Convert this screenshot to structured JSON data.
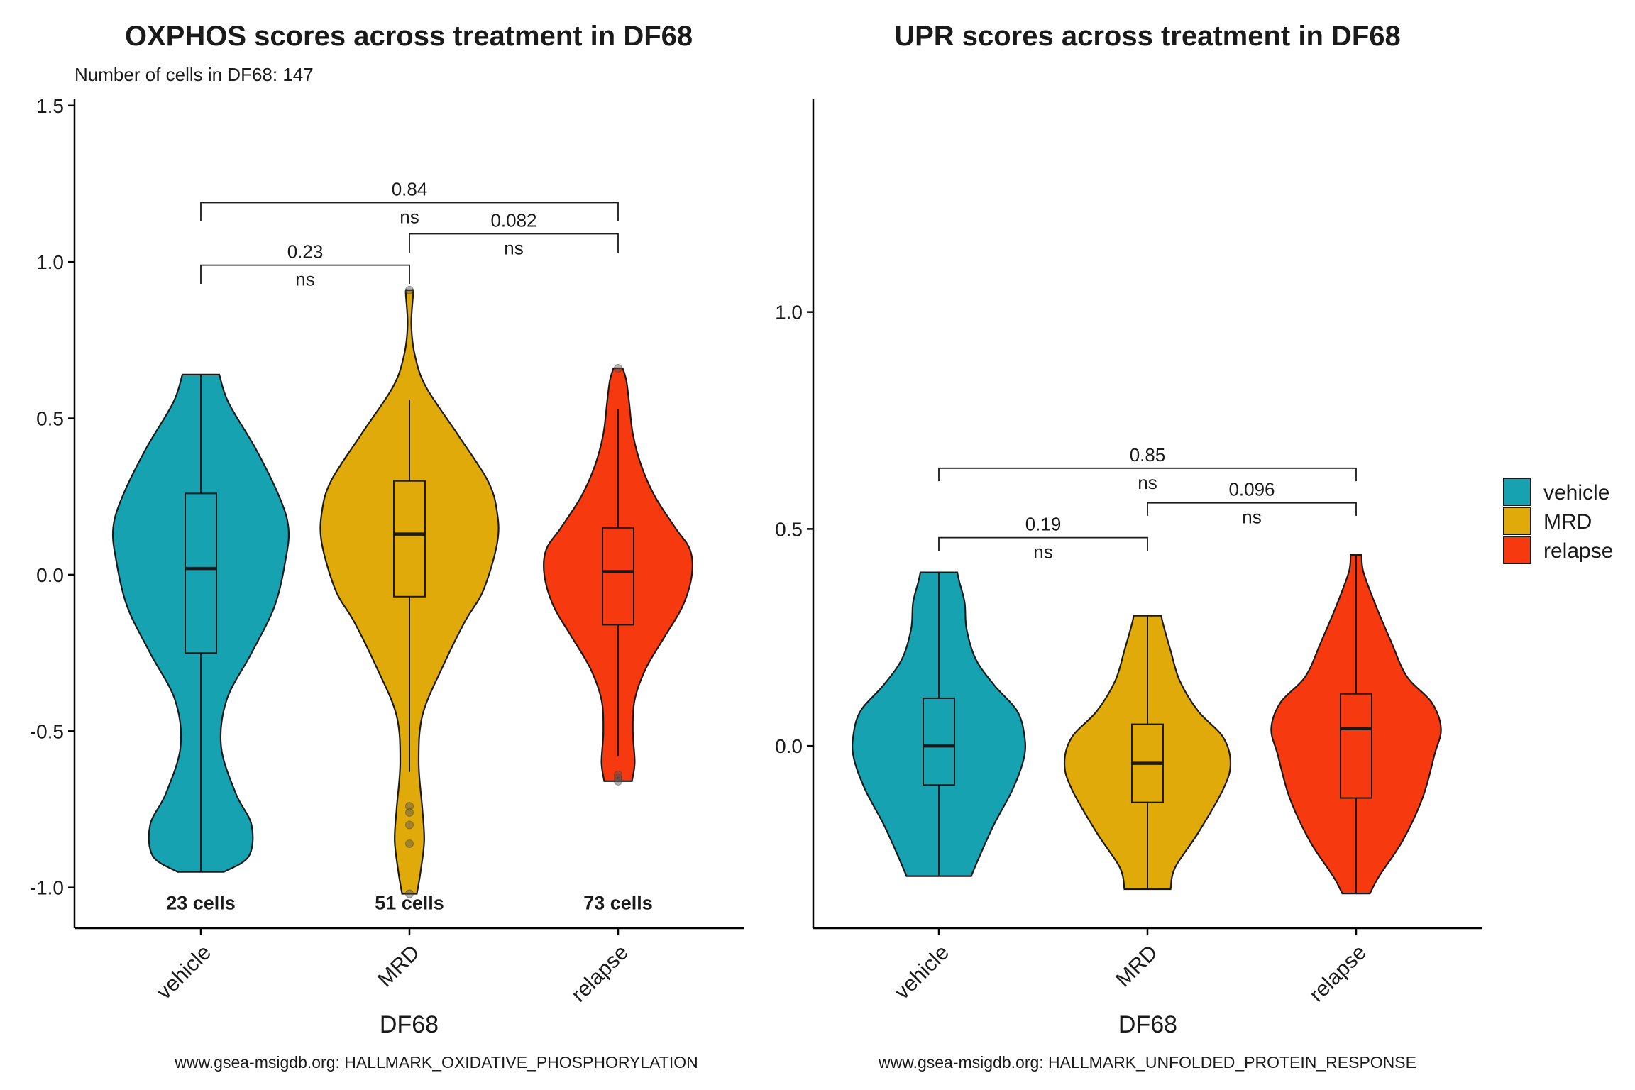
{
  "legend": {
    "entries": [
      {
        "label": "vehicle",
        "color": "#17A2B2"
      },
      {
        "label": "MRD",
        "color": "#E0AA0A"
      },
      {
        "label": "relapse",
        "color": "#F7390F"
      }
    ]
  },
  "chart_data": [
    {
      "type": "violin",
      "title": "OXPHOS scores across treatment in DF68",
      "subtitle": "Number of cells in DF68: 147",
      "xlabel": "DF68",
      "ylabel": "",
      "caption": "www.gsea-msigdb.org: HALLMARK_OXIDATIVE_PHOSPHORYLATION",
      "ylim": [
        -1.13,
        1.52
      ],
      "yticks": [
        -1.0,
        -0.5,
        0.0,
        0.5,
        1.0,
        1.5
      ],
      "ytick_labels": [
        "-1.0",
        "-0.5",
        "0.0",
        "0.5",
        "1.0",
        "1.5"
      ],
      "categories": [
        "vehicle",
        "MRD",
        "relapse"
      ],
      "colors": [
        "#17A2B2",
        "#E0AA0A",
        "#F7390F"
      ],
      "cell_counts": [
        "23 cells",
        "51 cells",
        "73 cells"
      ],
      "count_label_y": -1.05,
      "violins": [
        {
          "min": -0.95,
          "max": 0.64,
          "profile": [
            [
              -0.95,
              0.25
            ],
            [
              -0.9,
              0.52
            ],
            [
              -0.8,
              0.55
            ],
            [
              -0.7,
              0.38
            ],
            [
              -0.55,
              0.22
            ],
            [
              -0.4,
              0.28
            ],
            [
              -0.25,
              0.55
            ],
            [
              -0.1,
              0.8
            ],
            [
              0.05,
              0.92
            ],
            [
              0.15,
              0.95
            ],
            [
              0.25,
              0.85
            ],
            [
              0.4,
              0.6
            ],
            [
              0.55,
              0.3
            ],
            [
              0.64,
              0.2
            ]
          ]
        },
        {
          "min": -1.02,
          "max": 0.91,
          "profile": [
            [
              -1.02,
              0.08
            ],
            [
              -0.95,
              0.12
            ],
            [
              -0.85,
              0.16
            ],
            [
              -0.75,
              0.14
            ],
            [
              -0.6,
              0.1
            ],
            [
              -0.45,
              0.14
            ],
            [
              -0.3,
              0.35
            ],
            [
              -0.15,
              0.6
            ],
            [
              -0.05,
              0.8
            ],
            [
              0.1,
              0.95
            ],
            [
              0.2,
              0.95
            ],
            [
              0.3,
              0.85
            ],
            [
              0.45,
              0.52
            ],
            [
              0.6,
              0.18
            ],
            [
              0.7,
              0.06
            ],
            [
              0.8,
              0.02
            ],
            [
              0.9,
              0.04
            ],
            [
              0.91,
              0.03
            ]
          ]
        },
        {
          "min": -0.66,
          "max": 0.66,
          "profile": [
            [
              -0.66,
              0.15
            ],
            [
              -0.6,
              0.18
            ],
            [
              -0.5,
              0.16
            ],
            [
              -0.4,
              0.18
            ],
            [
              -0.3,
              0.3
            ],
            [
              -0.2,
              0.5
            ],
            [
              -0.1,
              0.7
            ],
            [
              0.0,
              0.8
            ],
            [
              0.08,
              0.78
            ],
            [
              0.15,
              0.62
            ],
            [
              0.25,
              0.4
            ],
            [
              0.35,
              0.25
            ],
            [
              0.45,
              0.16
            ],
            [
              0.55,
              0.12
            ],
            [
              0.62,
              0.09
            ],
            [
              0.66,
              0.05
            ]
          ]
        }
      ],
      "boxes": [
        {
          "q1": -0.25,
          "median": 0.02,
          "q3": 0.26,
          "whisker_low": -0.95,
          "whisker_high": 0.64,
          "outliers": []
        },
        {
          "q1": -0.07,
          "median": 0.13,
          "q3": 0.3,
          "whisker_low": -0.63,
          "whisker_high": 0.56,
          "outliers": [
            -0.74,
            -0.76,
            -0.8,
            -0.86,
            -1.02,
            0.91
          ]
        },
        {
          "q1": -0.16,
          "median": 0.01,
          "q3": 0.15,
          "whisker_low": -0.58,
          "whisker_high": 0.53,
          "outliers": [
            -0.64,
            -0.65,
            -0.66,
            0.66
          ]
        }
      ],
      "comparisons": [
        {
          "groups": [
            "vehicle",
            "MRD"
          ],
          "p": "0.23",
          "sig": "ns",
          "y": 0.99,
          "tick": 0.06
        },
        {
          "groups": [
            "vehicle",
            "relapse"
          ],
          "p": "0.84",
          "sig": "ns",
          "y": 1.19,
          "tick": 0.06
        },
        {
          "groups": [
            "MRD",
            "relapse"
          ],
          "p": "0.082",
          "sig": "ns",
          "y": 1.09,
          "tick": 0.06
        }
      ]
    },
    {
      "type": "violin",
      "title": "UPR scores across treatment in DF68",
      "subtitle": "",
      "xlabel": "DF68",
      "ylabel": "",
      "caption": "www.gsea-msigdb.org: HALLMARK_UNFOLDED_PROTEIN_RESPONSE",
      "ylim": [
        -0.42,
        1.49
      ],
      "yticks": [
        0.0,
        0.5,
        1.0
      ],
      "ytick_labels": [
        "0.0",
        "0.5",
        "1.0"
      ],
      "categories": [
        "vehicle",
        "MRD",
        "relapse"
      ],
      "colors": [
        "#17A2B2",
        "#E0AA0A",
        "#F7390F"
      ],
      "cell_counts": [],
      "count_label_y": null,
      "violins": [
        {
          "min": -0.3,
          "max": 0.4,
          "profile": [
            [
              -0.3,
              0.35
            ],
            [
              -0.25,
              0.45
            ],
            [
              -0.18,
              0.6
            ],
            [
              -0.1,
              0.8
            ],
            [
              -0.03,
              0.92
            ],
            [
              0.02,
              0.93
            ],
            [
              0.08,
              0.85
            ],
            [
              0.14,
              0.6
            ],
            [
              0.2,
              0.4
            ],
            [
              0.27,
              0.3
            ],
            [
              0.33,
              0.28
            ],
            [
              0.38,
              0.22
            ],
            [
              0.4,
              0.2
            ]
          ]
        },
        {
          "min": -0.33,
          "max": 0.3,
          "profile": [
            [
              -0.33,
              0.25
            ],
            [
              -0.28,
              0.3
            ],
            [
              -0.2,
              0.55
            ],
            [
              -0.1,
              0.82
            ],
            [
              -0.04,
              0.9
            ],
            [
              0.02,
              0.82
            ],
            [
              0.08,
              0.55
            ],
            [
              0.15,
              0.35
            ],
            [
              0.22,
              0.25
            ],
            [
              0.28,
              0.17
            ],
            [
              0.3,
              0.15
            ]
          ]
        },
        {
          "min": -0.34,
          "max": 0.44,
          "profile": [
            [
              -0.34,
              0.15
            ],
            [
              -0.3,
              0.25
            ],
            [
              -0.22,
              0.5
            ],
            [
              -0.12,
              0.72
            ],
            [
              -0.02,
              0.85
            ],
            [
              0.04,
              0.92
            ],
            [
              0.1,
              0.82
            ],
            [
              0.16,
              0.55
            ],
            [
              0.24,
              0.38
            ],
            [
              0.32,
              0.22
            ],
            [
              0.4,
              0.08
            ],
            [
              0.44,
              0.06
            ]
          ]
        }
      ],
      "boxes": [
        {
          "q1": -0.09,
          "median": 0.0,
          "q3": 0.11,
          "whisker_low": -0.3,
          "whisker_high": 0.4,
          "outliers": []
        },
        {
          "q1": -0.13,
          "median": -0.04,
          "q3": 0.05,
          "whisker_low": -0.33,
          "whisker_high": 0.3,
          "outliers": []
        },
        {
          "q1": -0.12,
          "median": 0.04,
          "q3": 0.12,
          "whisker_low": -0.34,
          "whisker_high": 0.44,
          "outliers": []
        }
      ],
      "comparisons": [
        {
          "groups": [
            "vehicle",
            "MRD"
          ],
          "p": "0.19",
          "sig": "ns",
          "y": 0.48,
          "tick": 0.03
        },
        {
          "groups": [
            "vehicle",
            "relapse"
          ],
          "p": "0.85",
          "sig": "ns",
          "y": 0.64,
          "tick": 0.03
        },
        {
          "groups": [
            "MRD",
            "relapse"
          ],
          "p": "0.096",
          "sig": "ns",
          "y": 0.56,
          "tick": 0.03
        }
      ]
    }
  ]
}
